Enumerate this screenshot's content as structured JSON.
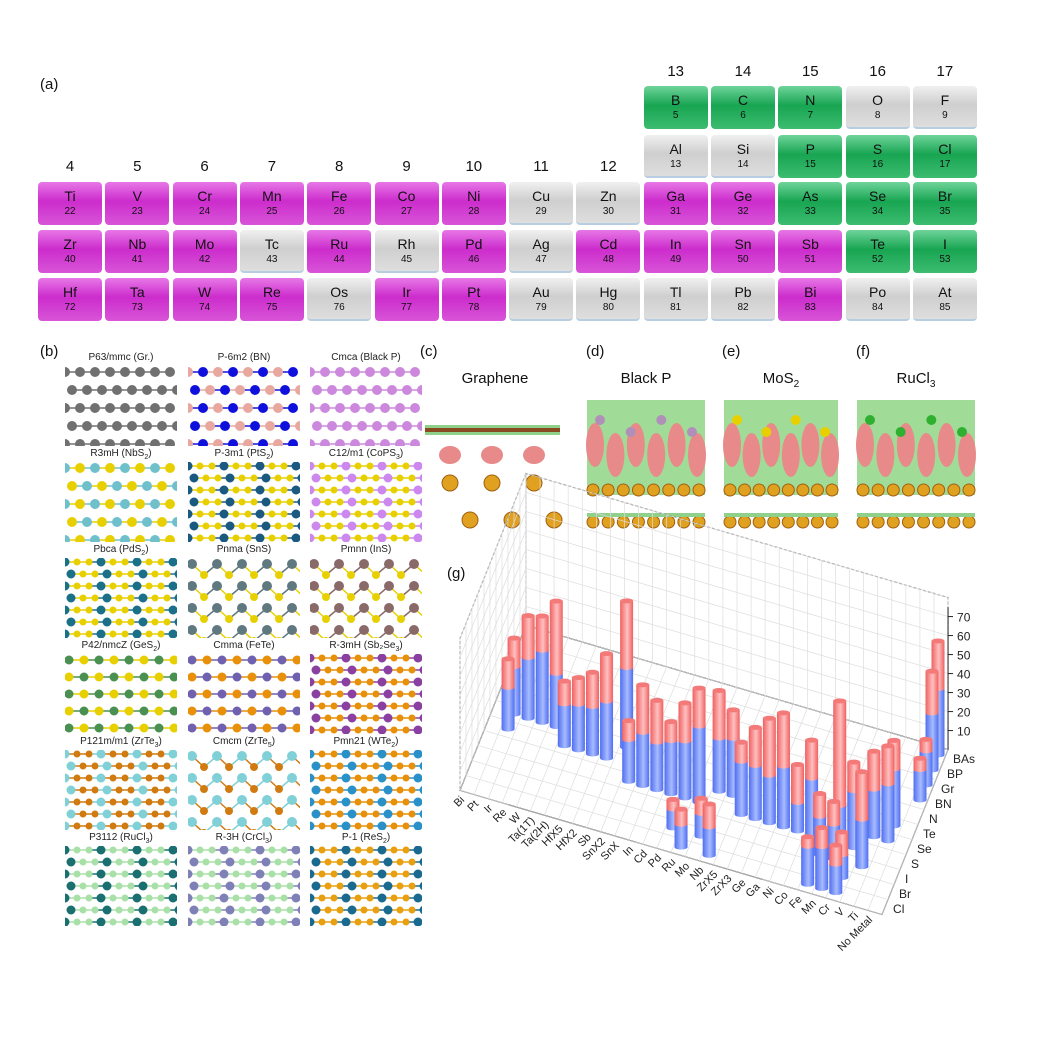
{
  "panels": {
    "a": "(a)",
    "b": "(b)",
    "c": "(c)",
    "d": "(d)",
    "e": "(e)",
    "f": "(f)",
    "g": "(g)"
  },
  "periodic_table": {
    "groups": [
      "4",
      "5",
      "6",
      "7",
      "8",
      "9",
      "10",
      "11",
      "12",
      "13",
      "14",
      "15",
      "16",
      "17"
    ],
    "category_colors": {
      "m": "#cc2ccc",
      "g": "#18a552",
      "x": "#d0d0d0"
    },
    "rows": [
      {
        "start_group": 13,
        "elements": [
          [
            "B",
            "5",
            "g"
          ],
          [
            "C",
            "6",
            "g"
          ],
          [
            "N",
            "7",
            "g"
          ],
          [
            "O",
            "8",
            "x"
          ],
          [
            "F",
            "9",
            "x"
          ]
        ]
      },
      {
        "start_group": 13,
        "elements": [
          [
            "Al",
            "13",
            "x"
          ],
          [
            "Si",
            "14",
            "x"
          ],
          [
            "P",
            "15",
            "g"
          ],
          [
            "S",
            "16",
            "g"
          ],
          [
            "Cl",
            "17",
            "g"
          ]
        ]
      },
      {
        "start_group": 4,
        "elements": [
          [
            "Ti",
            "22",
            "m"
          ],
          [
            "V",
            "23",
            "m"
          ],
          [
            "Cr",
            "24",
            "m"
          ],
          [
            "Mn",
            "25",
            "m"
          ],
          [
            "Fe",
            "26",
            "m"
          ],
          [
            "Co",
            "27",
            "m"
          ],
          [
            "Ni",
            "28",
            "m"
          ],
          [
            "Cu",
            "29",
            "x"
          ],
          [
            "Zn",
            "30",
            "x"
          ],
          [
            "Ga",
            "31",
            "m"
          ],
          [
            "Ge",
            "32",
            "m"
          ],
          [
            "As",
            "33",
            "g"
          ],
          [
            "Se",
            "34",
            "g"
          ],
          [
            "Br",
            "35",
            "g"
          ]
        ]
      },
      {
        "start_group": 4,
        "elements": [
          [
            "Zr",
            "40",
            "m"
          ],
          [
            "Nb",
            "41",
            "m"
          ],
          [
            "Mo",
            "42",
            "m"
          ],
          [
            "Tc",
            "43",
            "x"
          ],
          [
            "Ru",
            "44",
            "m"
          ],
          [
            "Rh",
            "45",
            "x"
          ],
          [
            "Pd",
            "46",
            "m"
          ],
          [
            "Ag",
            "47",
            "x"
          ],
          [
            "Cd",
            "48",
            "m"
          ],
          [
            "In",
            "49",
            "m"
          ],
          [
            "Sn",
            "50",
            "m"
          ],
          [
            "Sb",
            "51",
            "m"
          ],
          [
            "Te",
            "52",
            "g"
          ],
          [
            "I",
            "53",
            "g"
          ]
        ]
      },
      {
        "start_group": 4,
        "elements": [
          [
            "Hf",
            "72",
            "m"
          ],
          [
            "Ta",
            "73",
            "m"
          ],
          [
            "W",
            "74",
            "m"
          ],
          [
            "Re",
            "75",
            "m"
          ],
          [
            "Os",
            "76",
            "x"
          ],
          [
            "Ir",
            "77",
            "m"
          ],
          [
            "Pt",
            "78",
            "m"
          ],
          [
            "Au",
            "79",
            "x"
          ],
          [
            "Hg",
            "80",
            "x"
          ],
          [
            "Tl",
            "81",
            "x"
          ],
          [
            "Pb",
            "82",
            "x"
          ],
          [
            "Bi",
            "83",
            "m"
          ],
          [
            "Po",
            "84",
            "x"
          ],
          [
            "At",
            "85",
            "x"
          ]
        ]
      }
    ]
  },
  "structures": [
    {
      "sg": "P63/mmc",
      "name": "Gr.",
      "sub": "",
      "lattice": "hex",
      "colors": [
        "#707070",
        "#707070"
      ]
    },
    {
      "sg": "P-6m2",
      "name": "BN",
      "sub": "",
      "lattice": "hex",
      "colors": [
        "#1010dd",
        "#e8a8a0"
      ]
    },
    {
      "sg": "Cmca",
      "name": "Black P",
      "sub": "",
      "lattice": "hex",
      "colors": [
        "#cc88dd",
        "#cc88dd"
      ]
    },
    {
      "sg": "R3mH",
      "name": "NbS",
      "sub": "2",
      "lattice": "hex",
      "colors": [
        "#e8d000",
        "#70c0cc"
      ]
    },
    {
      "sg": "P-3m1",
      "name": "PtS",
      "sub": "2",
      "lattice": "tri",
      "colors": [
        "#e8d000",
        "#1a5a80"
      ]
    },
    {
      "sg": "C12/m1",
      "name": "CoPS",
      "sub": "3",
      "lattice": "tri",
      "colors": [
        "#e8d000",
        "#cc88ee"
      ]
    },
    {
      "sg": "Pbca",
      "name": "PdS",
      "sub": "2",
      "lattice": "tri",
      "colors": [
        "#e8d000",
        "#1a7088"
      ]
    },
    {
      "sg": "Pnma",
      "name": "SnS",
      "sub": "",
      "lattice": "diamond",
      "colors": [
        "#e8d000",
        "#607880"
      ]
    },
    {
      "sg": "Pmnn",
      "name": "InS",
      "sub": "",
      "lattice": "diamond",
      "colors": [
        "#e8d000",
        "#8a6a68"
      ]
    },
    {
      "sg": "P42/nmcZ",
      "name": "GeS",
      "sub": "2",
      "lattice": "square",
      "colors": [
        "#e8d000",
        "#4a9050"
      ]
    },
    {
      "sg": "Cmma",
      "name": "FeTe",
      "sub": "",
      "lattice": "square",
      "colors": [
        "#e8900a",
        "#7060b0"
      ]
    },
    {
      "sg": "R-3mH",
      "name": "Sb₂Se",
      "sub": "3",
      "lattice": "tri",
      "colors": [
        "#e8900a",
        "#8a40a0"
      ]
    },
    {
      "sg": "P121m/m1",
      "name": "ZrTe",
      "sub": "3",
      "lattice": "tri",
      "colors": [
        "#d07a10",
        "#80d0d8"
      ]
    },
    {
      "sg": "Cmcm",
      "name": "ZrTe",
      "sub": "5",
      "lattice": "diamond",
      "colors": [
        "#d07a10",
        "#80d0d8"
      ]
    },
    {
      "sg": "Pmn21",
      "name": "WTe",
      "sub": "2",
      "lattice": "tri",
      "colors": [
        "#e8900a",
        "#2a90c8"
      ]
    },
    {
      "sg": "P3112",
      "name": "RuCl",
      "sub": "3",
      "lattice": "tri",
      "colors": [
        "#a8e0a8",
        "#1a7070"
      ]
    },
    {
      "sg": "R-3H",
      "name": "CrCl",
      "sub": "3",
      "lattice": "tri",
      "colors": [
        "#a8e0a8",
        "#8080b8"
      ]
    },
    {
      "sg": "P-1",
      "name": "ReS",
      "sub": "2",
      "lattice": "tri",
      "colors": [
        "#e8a010",
        "#1a6a90"
      ]
    }
  ],
  "interfaces": [
    {
      "title": "Graphene",
      "sub": ""
    },
    {
      "title": "Black P",
      "sub": ""
    },
    {
      "title": "MoS",
      "sub": "2"
    },
    {
      "title": "RuCl",
      "sub": "3"
    }
  ],
  "chart_data": {
    "type": "bar3d",
    "stacked": true,
    "series_colors": [
      "#6f8cf8",
      "#f47a7a"
    ],
    "x_categories": [
      "Bi",
      "Pt",
      "Ir",
      "Re",
      "W",
      "Ta(1T)",
      "Ta(2H)",
      "HfX5",
      "HfX2",
      "Sb",
      "SnX2",
      "SnX",
      "In",
      "Cd",
      "Pd",
      "Ru",
      "Mo",
      "Nb",
      "ZrX5",
      "ZrX3",
      "Ge",
      "Ga",
      "Ni",
      "Co",
      "Fe",
      "Mn",
      "Cr",
      "V",
      "Ti",
      "No Metal"
    ],
    "y_categories": [
      "Cl",
      "Br",
      "I",
      "S",
      "Se",
      "Te",
      "N",
      "BN",
      "Gr",
      "BP",
      "BAs"
    ],
    "z_ticks": [
      10,
      20,
      30,
      40,
      50,
      60,
      70
    ],
    "zlim": [
      0,
      70
    ],
    "grid": true,
    "bars": [
      [
        "Pt",
        "Te",
        25,
        15
      ],
      [
        "Pt",
        "Se",
        22,
        15
      ],
      [
        "Ir",
        "Te",
        32,
        22
      ],
      [
        "Re",
        "Te",
        38,
        18
      ],
      [
        "W",
        "Te",
        28,
        38
      ],
      [
        "Ta(1T)",
        "Se",
        22,
        12
      ],
      [
        "Ta(2H)",
        "Se",
        24,
        14
      ],
      [
        "HfX5",
        "Se",
        25,
        18
      ],
      [
        "HfX2",
        "Se",
        30,
        25
      ],
      [
        "Sb",
        "Te",
        42,
        35
      ],
      [
        "SnX2",
        "S",
        22,
        10
      ],
      [
        "SnX",
        "S",
        28,
        25
      ],
      [
        "In",
        "S",
        25,
        22
      ],
      [
        "Cd",
        "S",
        28,
        10
      ],
      [
        "Pd",
        "S",
        30,
        20
      ],
      [
        "Ru",
        "S",
        40,
        20
      ],
      [
        "Mo",
        "Se",
        28,
        25
      ],
      [
        "Nb",
        "Se",
        30,
        15
      ],
      [
        "Pd",
        "Br",
        10,
        5
      ],
      [
        "Ru",
        "Cl",
        12,
        8
      ],
      [
        "Mo",
        "Br",
        12,
        8
      ],
      [
        "Nb",
        "Cl",
        15,
        12
      ],
      [
        "ZrX5",
        "S",
        28,
        10
      ],
      [
        "ZrX3",
        "S",
        28,
        20
      ],
      [
        "Ge",
        "S",
        25,
        30
      ],
      [
        "Ga",
        "S",
        32,
        28
      ],
      [
        "Ni",
        "S",
        15,
        20
      ],
      [
        "Co",
        "S",
        30,
        20
      ],
      [
        "Fe",
        "Cl",
        20,
        5
      ],
      [
        "Fe",
        "I",
        20,
        12
      ],
      [
        "Mn",
        "Cl",
        22,
        10
      ],
      [
        "Mn",
        "I",
        18,
        12
      ],
      [
        "Mn",
        "S",
        20,
        55
      ],
      [
        "Cr",
        "S",
        30,
        15
      ],
      [
        "Cr",
        "Br",
        12,
        12
      ],
      [
        "Cr",
        "Cl",
        15,
        10
      ],
      [
        "V",
        "Se",
        25,
        20
      ],
      [
        "V",
        "I",
        25,
        25
      ],
      [
        "Ti",
        "Se",
        30,
        20
      ],
      [
        "Ti",
        "Te",
        30,
        15
      ],
      [
        "No Metal",
        "BAs",
        35,
        25
      ],
      [
        "No Metal",
        "BP",
        30,
        22
      ],
      [
        "No Metal",
        "Gr",
        18,
        6
      ],
      [
        "No Metal",
        "BN",
        16,
        6
      ]
    ]
  }
}
